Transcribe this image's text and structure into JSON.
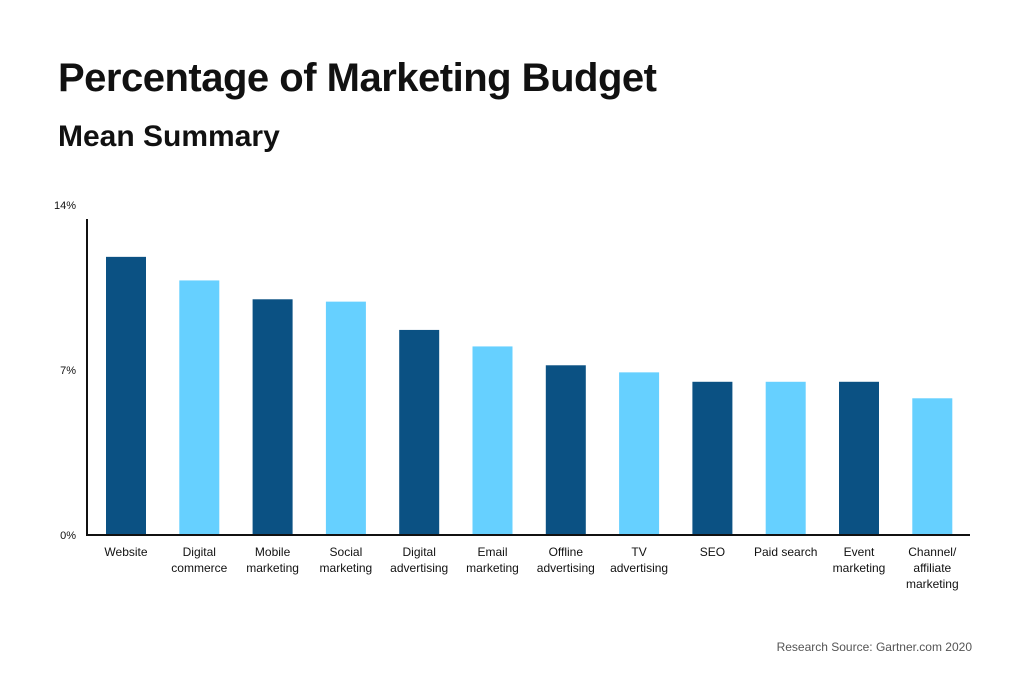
{
  "title": "Percentage of Marketing Budget",
  "subtitle": "Mean Summary",
  "source": "Research Source: Gartner.com 2020",
  "colors": {
    "dark": "#0b5183",
    "light": "#66d0ff",
    "axis": "#111111"
  },
  "chart_data": {
    "type": "bar",
    "categories": [
      [
        "Website"
      ],
      [
        "Digital",
        "commerce"
      ],
      [
        "Mobile",
        "marketing"
      ],
      [
        "Social",
        "marketing"
      ],
      [
        "Digital",
        "advertising"
      ],
      [
        "Email",
        "marketing"
      ],
      [
        "Offline",
        "advertising"
      ],
      [
        "TV",
        "advertising"
      ],
      [
        "SEO"
      ],
      [
        "Paid search"
      ],
      [
        "Event",
        "marketing"
      ],
      [
        "Channel/",
        "affiliate",
        "marketing"
      ]
    ],
    "values": [
      11.8,
      10.8,
      10.0,
      9.9,
      8.7,
      8.0,
      7.2,
      6.9,
      6.5,
      6.5,
      6.5,
      5.8
    ],
    "bar_colors": [
      "dark",
      "light",
      "dark",
      "light",
      "dark",
      "light",
      "dark",
      "light",
      "dark",
      "light",
      "dark",
      "light"
    ],
    "yticks": [
      {
        "value": 0,
        "label": "0%"
      },
      {
        "value": 7,
        "label": "7%"
      },
      {
        "value": 14,
        "label": "14%"
      }
    ],
    "ylim": [
      0,
      14
    ],
    "xlabel": "",
    "ylabel": "",
    "grid": false,
    "legend": "none"
  }
}
